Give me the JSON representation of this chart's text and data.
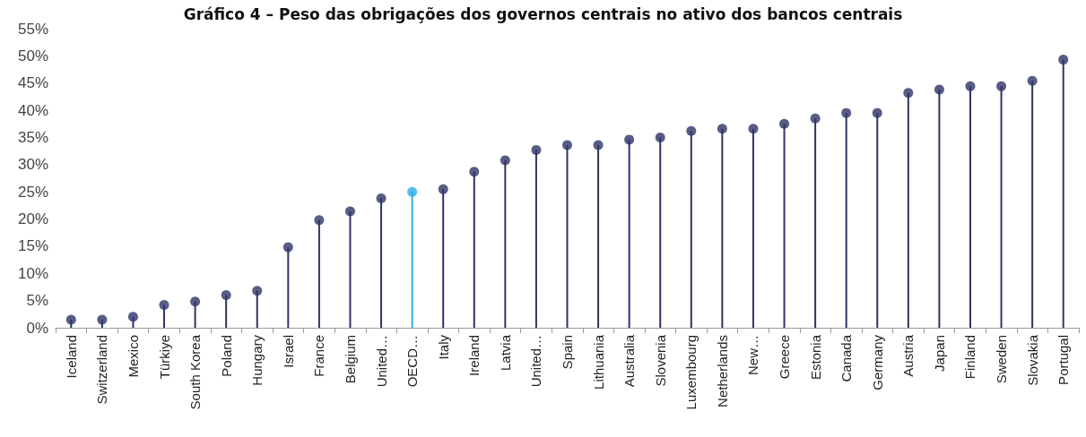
{
  "chart_data": {
    "type": "lollipop",
    "title": "Gráfico 4 – Peso das obrigações dos governos centrais no ativo dos bancos centrais",
    "categories": [
      "Iceland",
      "Switzerland",
      "Mexico",
      "Türkiye",
      "South Korea",
      "Poland",
      "Hungary",
      "Israel",
      "France",
      "Belgium",
      "United…",
      "OECD…",
      "Italy",
      "Ireland",
      "Latvia",
      "United…",
      "Spain",
      "Lithuania",
      "Australia",
      "Slovenia",
      "Luxembourg",
      "Netherlands",
      "New…",
      "Greece",
      "Estonia",
      "Canada",
      "Germany",
      "Austria",
      "Japan",
      "Finland",
      "Sweden",
      "Slovakia",
      "Portugal"
    ],
    "values": [
      1.5,
      1.5,
      2,
      4.2,
      4.8,
      6,
      6.8,
      14.8,
      19.8,
      21.4,
      23.8,
      25,
      25.5,
      28.7,
      30.8,
      32.7,
      33.6,
      33.6,
      34.6,
      35,
      36.2,
      36.6,
      36.6,
      37.5,
      38.5,
      39.5,
      39.5,
      43.2,
      43.8,
      44.4,
      44.4,
      45.4,
      49.3
    ],
    "colors": [
      "#2e3466",
      "#2e3466",
      "#2e3466",
      "#2e3466",
      "#2e3466",
      "#2e3466",
      "#2e3466",
      "#2e3466",
      "#2e3466",
      "#2e3466",
      "#2e3466",
      "#29abe2",
      "#2e3466",
      "#2e3466",
      "#2e3466",
      "#2e3466",
      "#2e3466",
      "#2e3466",
      "#2e3466",
      "#2e3466",
      "#2e3466",
      "#2e3466",
      "#2e3466",
      "#2e3466",
      "#2e3466",
      "#2e3466",
      "#2e3466",
      "#2e3466",
      "#2e3466",
      "#2e3466",
      "#2e3466",
      "#2e3466",
      "#2e3466"
    ],
    "ylim": [
      0,
      55
    ],
    "yticks": [
      {
        "value": 0,
        "label": "0%"
      },
      {
        "value": 5,
        "label": "5%"
      },
      {
        "value": 10,
        "label": "10%"
      },
      {
        "value": 15,
        "label": "15%"
      },
      {
        "value": 20,
        "label": "20%"
      },
      {
        "value": 25,
        "label": "25%"
      },
      {
        "value": 30,
        "label": "30%"
      },
      {
        "value": 35,
        "label": "35%"
      },
      {
        "value": 40,
        "label": "40%"
      },
      {
        "value": 45,
        "label": "45%"
      },
      {
        "value": 50,
        "label": "50%"
      },
      {
        "value": 55,
        "label": "55%"
      }
    ],
    "grid": false,
    "marker": "circle"
  }
}
